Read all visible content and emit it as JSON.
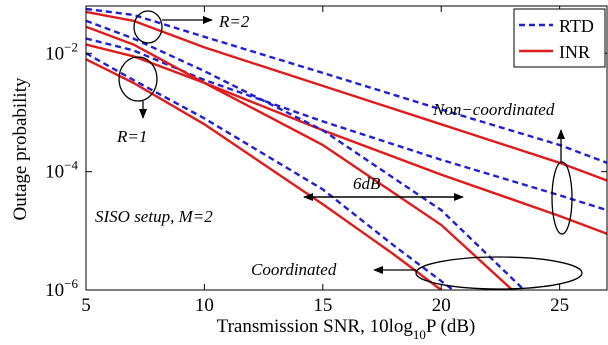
{
  "chart_data": {
    "type": "line",
    "title": "",
    "xlabel": "Transmission SNR, 10log",
    "xlabel_sub": "10",
    "xlabel_tail": "P (dB)",
    "ylabel": "Outage probability",
    "xlim": [
      5,
      27
    ],
    "ylim_log10": [
      -6,
      -1.2
    ],
    "yscale": "log",
    "x_ticks": [
      5,
      10,
      15,
      20,
      25
    ],
    "y_ticks": [
      {
        "base": "10",
        "exp": "−2",
        "log10": -2
      },
      {
        "base": "10",
        "exp": "−4",
        "log10": -4
      },
      {
        "base": "10",
        "exp": "−6",
        "log10": -6
      }
    ],
    "legend": {
      "placement": "top-right",
      "entries": [
        {
          "label": "RTD",
          "color": "#1f1fd6",
          "style": "dashed"
        },
        {
          "label": "INR",
          "color": "#e01b1b",
          "style": "solid"
        }
      ]
    },
    "series": [
      {
        "legend": "RTD",
        "group": "non-coordinated",
        "rate": "R=2",
        "color": "#1f1fd6",
        "style": "dashed",
        "x": [
          5,
          7,
          10,
          15,
          20,
          25,
          27
        ],
        "log10_y": [
          -1.25,
          -1.35,
          -1.72,
          -2.33,
          -2.95,
          -3.55,
          -3.85
        ]
      },
      {
        "legend": "INR",
        "group": "non-coordinated",
        "rate": "R=2",
        "color": "#e01b1b",
        "style": "solid",
        "x": [
          5,
          7,
          10,
          15,
          20,
          25,
          27
        ],
        "log10_y": [
          -1.3,
          -1.45,
          -1.9,
          -2.55,
          -3.2,
          -3.85,
          -4.15
        ]
      },
      {
        "legend": "RTD",
        "group": "non-coordinated",
        "rate": "R=1",
        "color": "#1f1fd6",
        "style": "dashed",
        "x": [
          5,
          7,
          10,
          15,
          20,
          25,
          27
        ],
        "log10_y": [
          -1.75,
          -1.95,
          -2.45,
          -3.15,
          -3.8,
          -4.4,
          -4.65
        ]
      },
      {
        "legend": "INR",
        "group": "non-coordinated",
        "rate": "R=1",
        "color": "#e01b1b",
        "style": "solid",
        "x": [
          5,
          7,
          10,
          15,
          20,
          25,
          27
        ],
        "log10_y": [
          -1.85,
          -2.05,
          -2.5,
          -3.3,
          -4.05,
          -4.75,
          -5.05
        ]
      },
      {
        "legend": "RTD",
        "group": "coordinated",
        "rate": "R=2",
        "color": "#1f1fd6",
        "style": "dashed",
        "x": [
          5,
          7,
          10,
          15,
          20,
          23.5
        ],
        "log10_y": [
          -1.45,
          -1.75,
          -2.3,
          -3.3,
          -4.65,
          -6.0
        ]
      },
      {
        "legend": "INR",
        "group": "coordinated",
        "rate": "R=2",
        "color": "#e01b1b",
        "style": "solid",
        "x": [
          5,
          7,
          10,
          15,
          20,
          23
        ],
        "log10_y": [
          -1.55,
          -1.85,
          -2.5,
          -3.55,
          -4.9,
          -6.0
        ]
      },
      {
        "legend": "RTD",
        "group": "coordinated",
        "rate": "R=1",
        "color": "#1f1fd6",
        "style": "dashed",
        "x": [
          5,
          7,
          10,
          15,
          18,
          20.5
        ],
        "log10_y": [
          -2.0,
          -2.45,
          -3.1,
          -4.3,
          -5.25,
          -6.0
        ]
      },
      {
        "legend": "INR",
        "group": "coordinated",
        "rate": "R=1",
        "color": "#e01b1b",
        "style": "solid",
        "x": [
          5,
          7,
          10,
          15,
          18,
          20
        ],
        "log10_y": [
          -2.1,
          -2.5,
          -3.2,
          -4.55,
          -5.4,
          -6.0
        ]
      }
    ],
    "annotations": {
      "r2": "R=2",
      "r1": "R=1",
      "noncoord": "Non−coordinated",
      "coord": "Coordinated",
      "gap": "6dB",
      "setup": "SISO setup, M=2"
    },
    "grid": false
  }
}
